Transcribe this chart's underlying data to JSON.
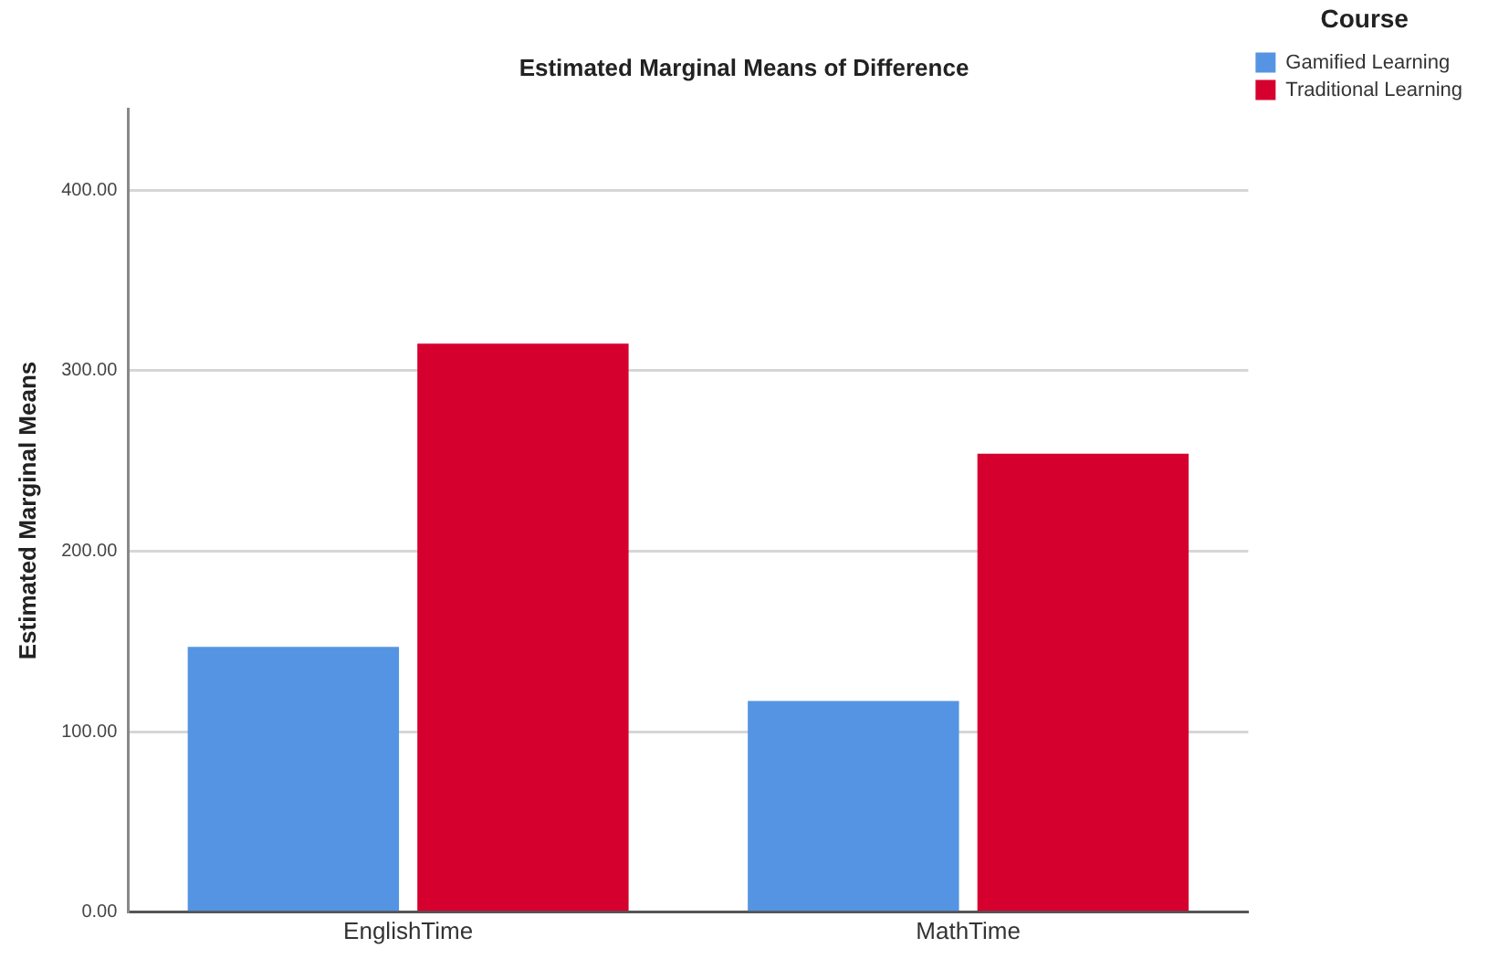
{
  "chart_data": {
    "type": "bar",
    "title": "Estimated Marginal Means of Difference",
    "ylabel": "Estimated Marginal Means",
    "legend_title": "Course",
    "categories": [
      "EnglishTime",
      "MathTime"
    ],
    "series": [
      {
        "name": "Gamified Learning",
        "color": "#5594e2",
        "values": [
          147,
          117
        ]
      },
      {
        "name": "Traditional Learning",
        "color": "#d6002f",
        "values": [
          315,
          254
        ]
      }
    ],
    "ylim": [
      0,
      445
    ],
    "yticks": [
      {
        "value": 0,
        "label": "0.00"
      },
      {
        "value": 100,
        "label": "100.00"
      },
      {
        "value": 200,
        "label": "200.00"
      },
      {
        "value": 300,
        "label": "300.00"
      },
      {
        "value": 400,
        "label": "400.00"
      }
    ],
    "grid": "y",
    "legend": "top right"
  }
}
